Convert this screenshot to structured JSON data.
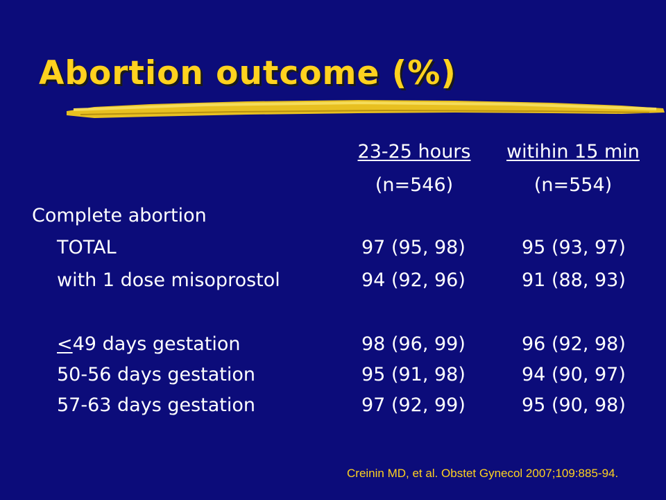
{
  "title": "Abortion outcome (%)",
  "columns": [
    {
      "header": "23-25 hours",
      "n": "(n=546)"
    },
    {
      "header": "witihin 15 min",
      "n": "(n=554)"
    }
  ],
  "section_label": "Complete abortion",
  "rows": [
    {
      "label": "TOTAL",
      "v1": "97 (95, 98)",
      "v2": "95 (93, 97)"
    },
    {
      "label": "with 1 dose misoprostol",
      "v1": "94 (92, 96)",
      "v2": "91 (88, 93)"
    },
    {
      "label_prefix": "<",
      "label_rest": "49 days gestation",
      "v1": "98 (96, 99)",
      "v2": "96 (92, 98)"
    },
    {
      "label": "50-56 days gestation",
      "v1": "95 (91, 98)",
      "v2": "94 (90, 97)"
    },
    {
      "label": "57-63 days gestation",
      "v1": "97 (92, 99)",
      "v2": "95 (90, 98)"
    }
  ],
  "citation": "Creinin MD, et al. Obstet Gynecol 2007;109:885-94.",
  "colors": {
    "background": "#0c0c7a",
    "title": "#ffd21f",
    "text": "#ffffff",
    "citation": "#ffd21f"
  }
}
